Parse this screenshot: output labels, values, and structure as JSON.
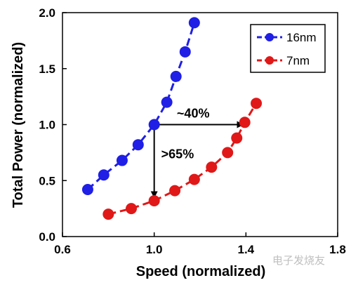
{
  "chart_data": {
    "type": "line",
    "xlabel": "Speed (normalized)",
    "ylabel": "Total Power (normalized)",
    "xlim": [
      0.6,
      1.8
    ],
    "ylim": [
      0.0,
      2.0
    ],
    "xticks": [
      "0.6",
      "1.0",
      "1.4",
      "1.8"
    ],
    "yticks": [
      "0.0",
      "0.5",
      "1.0",
      "1.5",
      "2.0"
    ],
    "grid": false,
    "legend_position": "top-right",
    "series": [
      {
        "name": "16nm",
        "color": "#1f1fe6",
        "x": [
          0.71,
          0.78,
          0.86,
          0.93,
          1.0,
          1.055,
          1.095,
          1.135,
          1.175
        ],
        "y": [
          0.42,
          0.55,
          0.68,
          0.82,
          1.0,
          1.2,
          1.43,
          1.65,
          1.91
        ]
      },
      {
        "name": "7nm",
        "color": "#e01818",
        "x": [
          0.8,
          0.9,
          1.0,
          1.09,
          1.175,
          1.25,
          1.32,
          1.36,
          1.395,
          1.445
        ],
        "y": [
          0.2,
          0.25,
          0.32,
          0.41,
          0.51,
          0.62,
          0.75,
          0.88,
          1.02,
          1.19
        ]
      }
    ],
    "annotations": [
      {
        "text": "~40%"
      },
      {
        "text": ">65%"
      }
    ]
  },
  "watermark": "电子发烧友"
}
